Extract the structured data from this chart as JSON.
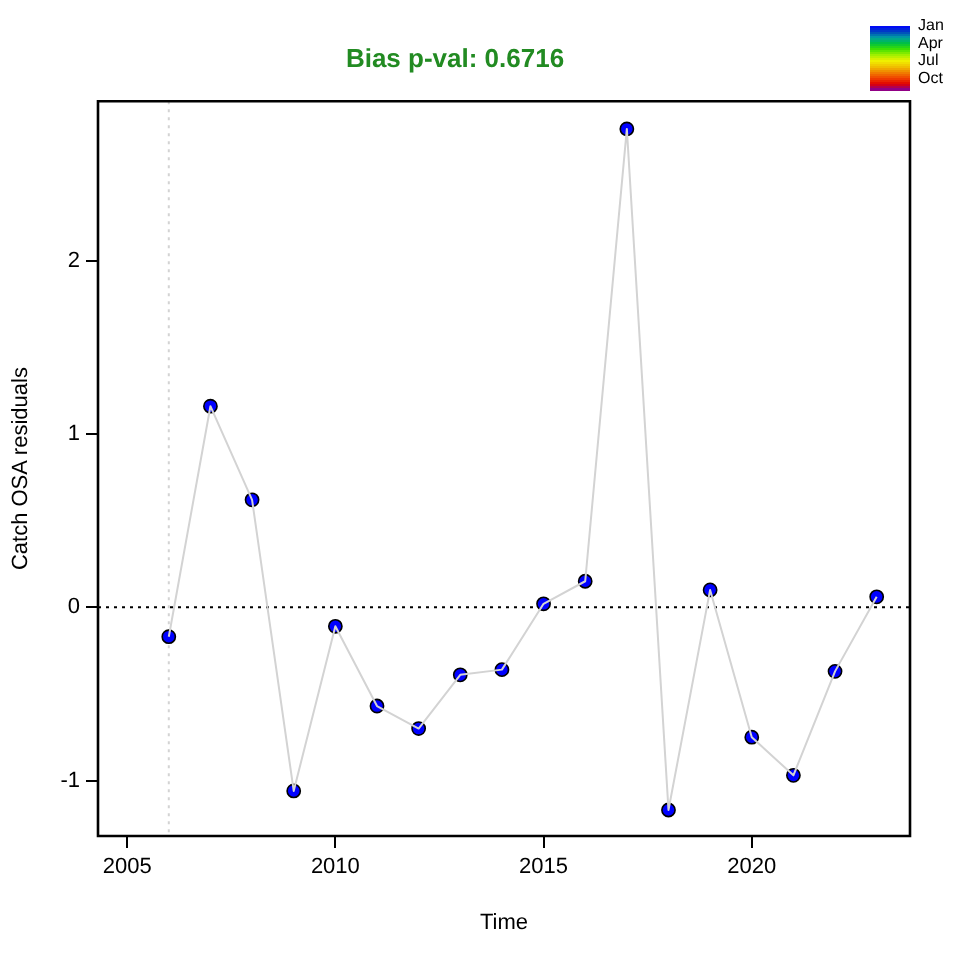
{
  "chart_data": {
    "type": "line",
    "title": "Bias p-val: 0.6716",
    "xlabel": "Time",
    "ylabel": "Catch OSA residuals",
    "x": [
      2006,
      2007,
      2008,
      2009,
      2010,
      2011,
      2012,
      2013,
      2014,
      2015,
      2016,
      2017,
      2018,
      2019,
      2020,
      2021,
      2022,
      2023
    ],
    "series": [
      {
        "color": "#d3d3d3",
        "marker": "none",
        "values": [
          -0.17,
          1.16,
          0.62,
          -1.06,
          -0.11,
          -0.57,
          -0.7,
          -0.39,
          -0.36,
          0.02,
          0.15,
          2.76,
          -1.17,
          0.1,
          -0.75,
          -0.97,
          -0.37,
          0.06
        ]
      },
      {
        "type": "scatter",
        "color": "#0000ff",
        "values": [
          -0.17,
          1.16,
          0.62,
          -1.06,
          -0.11,
          -0.57,
          -0.7,
          -0.39,
          -0.36,
          0.02,
          0.15,
          2.76,
          -1.17,
          0.1,
          -0.75,
          -0.97,
          -0.37,
          0.06
        ]
      }
    ],
    "xlim": [
      2004.3,
      2023.8
    ],
    "xticks": [
      2005,
      2010,
      2015,
      2020
    ],
    "ylim": [
      -1.32,
      2.92
    ],
    "yticks": [
      -1,
      0,
      1,
      2
    ],
    "clim": [
      1,
      12
    ],
    "cticks": [
      {
        "value": 1,
        "label": "Jan"
      },
      {
        "value": 4,
        "label": "Apr"
      },
      {
        "value": 7,
        "label": "Jul"
      },
      {
        "value": 10,
        "label": "Oct"
      }
    ],
    "marker": "circle",
    "line_style": "solid",
    "grid": false,
    "ref_lines": [
      {
        "axis": "x",
        "value": 2006,
        "color": "#d3d3d3",
        "line_style": "dotted"
      },
      {
        "axis": "y",
        "value": 0,
        "color": "#000000",
        "line_style": "dotted"
      }
    ]
  }
}
